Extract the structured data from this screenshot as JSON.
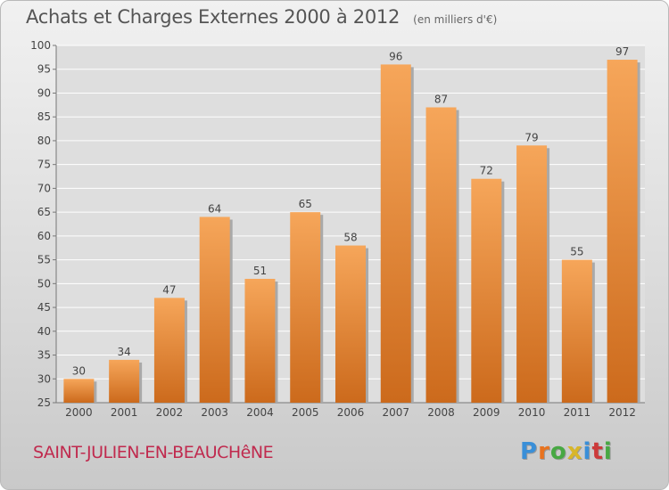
{
  "title": "Achats et Charges Externes 2000 à 2012",
  "subtitle": "(en milliers d'€)",
  "commune": "SAINT-JULIEN-EN-BEAUCHêNE",
  "logo": {
    "text": "Proxiti",
    "letters": [
      "P",
      "r",
      "o",
      "x",
      "i",
      "t",
      "i"
    ],
    "colors": [
      "#3a8fd8",
      "#e8731f",
      "#48a844",
      "#d8b62a",
      "#3a8fd8",
      "#cc3a3a",
      "#48a844"
    ]
  },
  "colors": {
    "bar_top": "#f6a65a",
    "bar_bottom": "#cc6a1c",
    "bar_shadow": "#a9a9a9",
    "grid": "#ffffff",
    "axis_text": "#444444",
    "commune": "#c02a4e"
  },
  "chart_data": {
    "type": "bar",
    "categories": [
      "2000",
      "2001",
      "2002",
      "2003",
      "2004",
      "2005",
      "2006",
      "2007",
      "2008",
      "2009",
      "2010",
      "2011",
      "2012"
    ],
    "values": [
      30,
      34,
      47,
      64,
      51,
      65,
      58,
      96,
      87,
      72,
      79,
      55,
      97
    ],
    "ylim": [
      25,
      100
    ],
    "yticks": [
      25,
      30,
      35,
      40,
      45,
      50,
      55,
      60,
      65,
      70,
      75,
      80,
      85,
      90,
      95,
      100
    ],
    "grid": true,
    "data_labels": true
  }
}
